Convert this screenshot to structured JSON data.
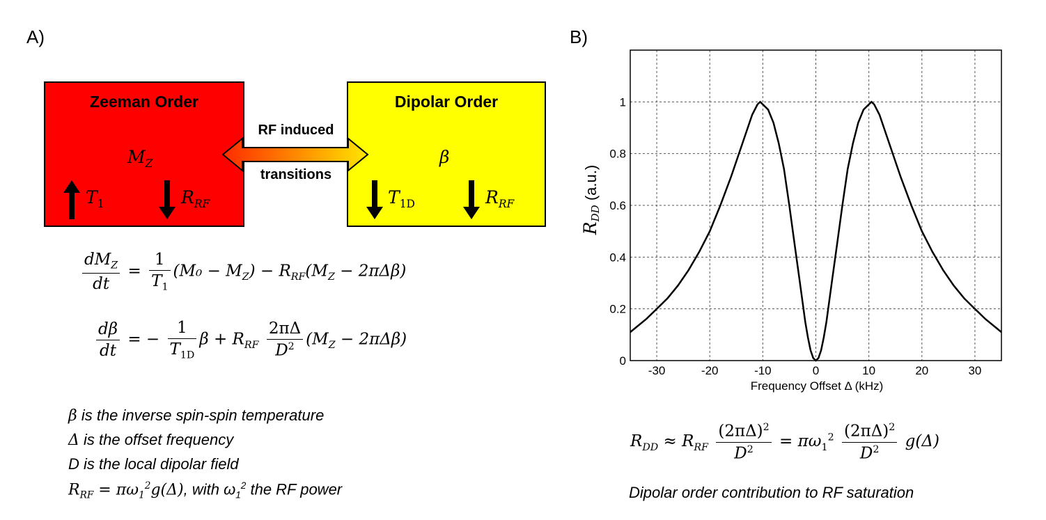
{
  "panel_a": {
    "label": "A)",
    "zeeman_box": {
      "title": "Zeeman Order",
      "symbol": "M",
      "symbol_sub": "Z",
      "left_term": "T",
      "left_sub": "1",
      "right_term": "R",
      "right_sub": "RF",
      "color": "#ff0000"
    },
    "dipolar_box": {
      "title": "Dipolar Order",
      "symbol": "β",
      "left_term": "T",
      "left_sub": "1D",
      "right_term": "R",
      "right_sub": "RF",
      "color": "#ffff00"
    },
    "arrow_label_top": "RF induced",
    "arrow_label_bottom": "transitions",
    "equation1": {
      "lhs_num": "dM",
      "lhs_num_sub": "Z",
      "lhs_den": "dt",
      "eq": "=",
      "frac_num": "1",
      "frac_den": "T",
      "frac_den_sub": "1",
      "term": "(M₀  − M",
      "term_sub": "Z",
      "term_close": ") − R",
      "r_sub": "RF",
      "tail": "(M",
      "tail_sub": "Z",
      "tail_end": " − 2πΔβ)"
    },
    "equation2": {
      "lhs_num": "dβ",
      "lhs_den": "dt",
      "eq": "= −",
      "frac_num": "1",
      "frac_den": "T",
      "frac_den_sub": "1D",
      "after_frac": "β + R",
      "r_sub": "RF",
      "frac2_num": "2πΔ",
      "frac2_den": "D",
      "frac2_den_sup": "2",
      "tail": "(M",
      "tail_sub": "Z",
      "tail_end": " − 2πΔβ)"
    },
    "notes": [
      {
        "sym": "β",
        "text": " is the inverse spin-spin temperature"
      },
      {
        "sym": "Δ",
        "text": " is the offset frequency"
      },
      {
        "sym": "",
        "text": "D is the local dipolar field"
      }
    ],
    "note4": {
      "r": "R",
      "r_sub": "RF",
      "eq": " =  πω",
      "w_sub": "1",
      "w_sup": "2",
      "g": "g(Δ)",
      "mid": ", with ω",
      "mid_sub": "1",
      "mid_sup": "2",
      "end": " the RF power"
    }
  },
  "panel_b": {
    "label": "B)",
    "formula": {
      "lhs": "R",
      "lhs_sub": "DD",
      "approx": " ≈ R",
      "r_sub": "RF",
      "f1_num": "(2πΔ)",
      "f1_num_sup": "2",
      "f1_den": "D",
      "f1_den_sup": "2",
      "eq": " = πω",
      "w_sub": "1",
      "w_sup": "2",
      "f2_num": "(2πΔ)",
      "f2_num_sup": "2",
      "f2_den": "D",
      "f2_den_sup": "2",
      "tail": " g(Δ)"
    },
    "caption": "Dipolar order contribution to RF saturation"
  },
  "chart_data": {
    "type": "line",
    "xlabel": "Frequency Offset Δ (kHz)",
    "ylabel_main": "R",
    "ylabel_sub": "DD",
    "ylabel_unit": " (a.u.)",
    "xlim": [
      -35,
      35
    ],
    "ylim": [
      0,
      1.2
    ],
    "xticks": [
      -30,
      -20,
      -10,
      0,
      10,
      20,
      30
    ],
    "yticks": [
      0,
      0.2,
      0.4,
      0.6,
      0.8,
      1
    ],
    "ytick_labels": [
      "0",
      "0.2",
      "0.4",
      "0.6",
      "0.8",
      "1"
    ],
    "grid": true,
    "series": [
      {
        "x": [
          -35,
          -32,
          -30,
          -28,
          -26,
          -24,
          -22,
          -20,
          -18,
          -16,
          -14,
          -12,
          -11,
          -10.5,
          -10,
          -9,
          -8,
          -7,
          -6,
          -5,
          -4,
          -3,
          -2,
          -1.5,
          -1,
          -0.5,
          0,
          0.5,
          1,
          1.5,
          2,
          3,
          4,
          5,
          6,
          7,
          8,
          9,
          10,
          10.5,
          11,
          12,
          14,
          16,
          18,
          20,
          22,
          24,
          26,
          28,
          30,
          32,
          35
        ],
        "y": [
          0.11,
          0.16,
          0.2,
          0.24,
          0.29,
          0.35,
          0.42,
          0.5,
          0.6,
          0.71,
          0.83,
          0.95,
          0.99,
          1.0,
          0.99,
          0.97,
          0.92,
          0.84,
          0.74,
          0.6,
          0.45,
          0.3,
          0.15,
          0.09,
          0.04,
          0.01,
          0.0,
          0.01,
          0.04,
          0.09,
          0.15,
          0.3,
          0.45,
          0.6,
          0.74,
          0.84,
          0.92,
          0.97,
          0.99,
          1.0,
          0.99,
          0.95,
          0.83,
          0.71,
          0.6,
          0.5,
          0.42,
          0.35,
          0.29,
          0.24,
          0.2,
          0.16,
          0.11
        ]
      }
    ],
    "line_color": "#000000"
  }
}
